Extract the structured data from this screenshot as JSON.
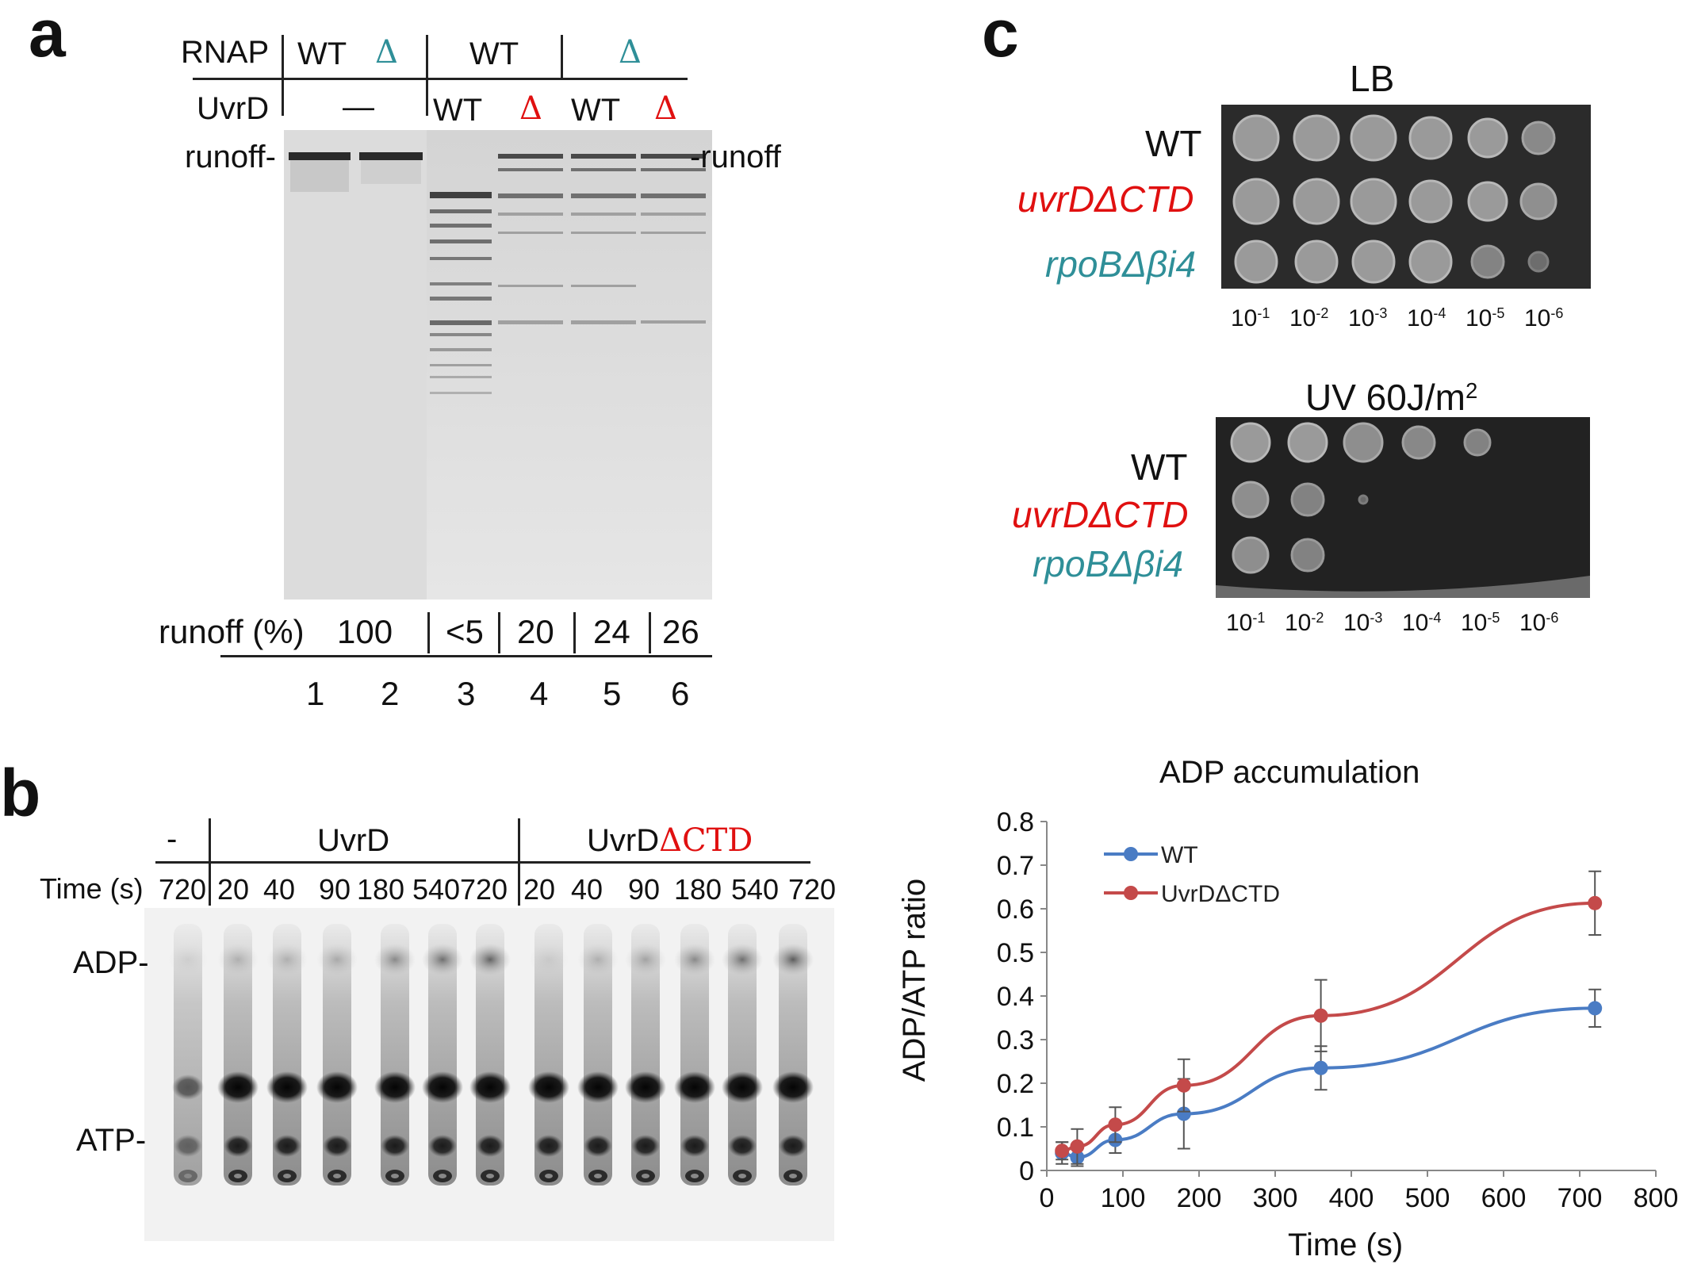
{
  "panel_a": {
    "label": "a",
    "rnap_label": "RNAP",
    "uvrd_label": "UvrD",
    "rnap_headers": [
      "WT",
      "Δ",
      "WT",
      "Δ"
    ],
    "uvrd_headers": [
      "—",
      "WT",
      "Δ",
      "WT",
      "Δ"
    ],
    "runoff_left": "runoff-",
    "runoff_right": "-runoff",
    "runoff_pct_label": "runoff (%)",
    "runoff_values": [
      "100",
      "<5",
      "20",
      "24",
      "26"
    ],
    "lane_numbers": [
      "1",
      "2",
      "3",
      "4",
      "5",
      "6"
    ]
  },
  "panel_b": {
    "label": "b",
    "minus_label": "-",
    "uvrd_group": "UvrD",
    "ctd_group_prefix": "UvrD",
    "ctd_group_suffix": "ΔCTD",
    "time_label": "Time (s)",
    "times": [
      "720",
      "20",
      "40",
      "90",
      "180",
      "540",
      "720",
      "20",
      "40",
      "90",
      "180",
      "540",
      "720"
    ],
    "adp_label": "ADP-",
    "atp_label": "ATP-"
  },
  "panel_c": {
    "label": "c",
    "lb_title": "LB",
    "uv_title_main": "UV 60J/m",
    "uv_title_sup": "2",
    "strains": [
      "WT",
      "uvrDΔCTD",
      "rpoBΔβi4"
    ],
    "dilutions": [
      {
        "base": "10",
        "exp": "-1"
      },
      {
        "base": "10",
        "exp": "-2"
      },
      {
        "base": "10",
        "exp": "-3"
      },
      {
        "base": "10",
        "exp": "-4"
      },
      {
        "base": "10",
        "exp": "-5"
      },
      {
        "base": "10",
        "exp": "-6"
      }
    ]
  },
  "chart_data": {
    "type": "line",
    "title": "ADP accumulation",
    "xlabel": "Time (s)",
    "ylabel": "ADP/ATP ratio",
    "xlim": [
      0,
      800
    ],
    "ylim": [
      0,
      0.8
    ],
    "xticks": [
      0,
      100,
      200,
      300,
      400,
      500,
      600,
      700,
      800
    ],
    "yticks": [
      0,
      0.1,
      0.2,
      0.3,
      0.4,
      0.5,
      0.6,
      0.7,
      0.8
    ],
    "ytick_labels": [
      "0",
      "0.1",
      "0.2",
      "0.3",
      "0.4",
      "0.5",
      "0.6",
      "0.7",
      "0.8"
    ],
    "x": [
      20,
      40,
      90,
      180,
      360,
      720
    ],
    "series": [
      {
        "name": "WT",
        "color": "#4a7cc4",
        "values": [
          0.04,
          0.03,
          0.07,
          0.13,
          0.235,
          0.372
        ],
        "errors": [
          0.025,
          0.02,
          0.03,
          0.08,
          0.05,
          0.043
        ]
      },
      {
        "name": "UvrDΔCTD",
        "color": "#c44a4a",
        "values": [
          0.045,
          0.055,
          0.105,
          0.195,
          0.355,
          0.613
        ],
        "errors": [
          0.02,
          0.04,
          0.04,
          0.06,
          0.082,
          0.073
        ]
      }
    ],
    "legend_position": "top-left"
  }
}
